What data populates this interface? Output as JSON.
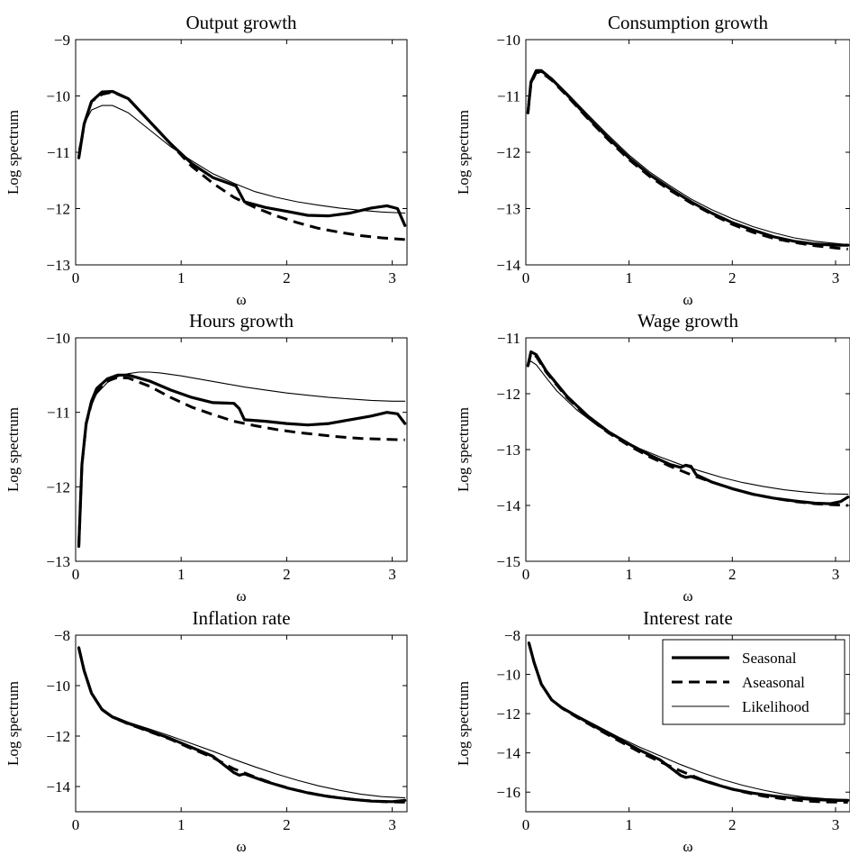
{
  "figure": {
    "legend": {
      "placement": "top-right of panel 6",
      "entries": [
        {
          "label": "Seasonal",
          "style": "thick-solid"
        },
        {
          "label": "Aseasonal",
          "style": "thick-dashed"
        },
        {
          "label": "Likelihood",
          "style": "thin-solid"
        }
      ]
    },
    "colors": {
      "line": "#000000",
      "background": "#ffffff"
    }
  },
  "chart_data": [
    {
      "type": "line",
      "title": "Output growth",
      "xlabel": "ω",
      "ylabel": "Log spectrum",
      "xlim": [
        0,
        3.14
      ],
      "ylim": [
        -13,
        -9
      ],
      "xticks": [
        "0",
        "1",
        "2",
        "3"
      ],
      "yticks": [
        "−13",
        "−12",
        "−11",
        "−10",
        "−9"
      ],
      "grid": false,
      "series": [
        {
          "name": "Seasonal",
          "x": [
            0.03,
            0.08,
            0.15,
            0.25,
            0.35,
            0.5,
            0.7,
            0.9,
            1.1,
            1.3,
            1.45,
            1.52,
            1.6,
            1.8,
            2.0,
            2.2,
            2.4,
            2.6,
            2.8,
            2.95,
            3.05,
            3.12
          ],
          "y": [
            -11.1,
            -10.5,
            -10.1,
            -9.93,
            -9.92,
            -10.05,
            -10.45,
            -10.85,
            -11.2,
            -11.45,
            -11.55,
            -11.6,
            -11.88,
            -11.98,
            -12.05,
            -12.12,
            -12.13,
            -12.08,
            -11.99,
            -11.95,
            -12.0,
            -12.3
          ]
        },
        {
          "name": "Aseasonal",
          "x": [
            0.03,
            0.08,
            0.15,
            0.25,
            0.35,
            0.5,
            0.7,
            0.9,
            1.1,
            1.3,
            1.5,
            1.7,
            1.9,
            2.1,
            2.3,
            2.5,
            2.7,
            2.9,
            3.12
          ],
          "y": [
            -11.1,
            -10.5,
            -10.1,
            -9.97,
            -9.93,
            -10.05,
            -10.45,
            -10.85,
            -11.25,
            -11.55,
            -11.8,
            -11.98,
            -12.13,
            -12.25,
            -12.35,
            -12.42,
            -12.48,
            -12.52,
            -12.55
          ]
        },
        {
          "name": "Likelihood",
          "x": [
            0.03,
            0.08,
            0.15,
            0.25,
            0.35,
            0.5,
            0.7,
            0.9,
            1.1,
            1.3,
            1.5,
            1.7,
            1.9,
            2.1,
            2.3,
            2.5,
            2.7,
            2.9,
            3.12
          ],
          "y": [
            -10.95,
            -10.5,
            -10.25,
            -10.17,
            -10.17,
            -10.3,
            -10.6,
            -10.9,
            -11.15,
            -11.38,
            -11.55,
            -11.7,
            -11.8,
            -11.88,
            -11.94,
            -11.99,
            -12.03,
            -12.06,
            -12.08
          ]
        }
      ]
    },
    {
      "type": "line",
      "title": "Consumption growth",
      "xlabel": "ω",
      "ylabel": "Log spectrum",
      "xlim": [
        0,
        3.14
      ],
      "ylim": [
        -14,
        -10
      ],
      "xticks": [
        "0",
        "1",
        "2",
        "3"
      ],
      "yticks": [
        "−14",
        "−13",
        "−12",
        "−11",
        "−10"
      ],
      "grid": false,
      "series": [
        {
          "name": "Seasonal",
          "x": [
            0.02,
            0.05,
            0.1,
            0.15,
            0.25,
            0.4,
            0.6,
            0.8,
            1.0,
            1.2,
            1.4,
            1.6,
            1.8,
            2.0,
            2.2,
            2.4,
            2.6,
            2.8,
            3.0,
            3.12
          ],
          "y": [
            -11.3,
            -10.75,
            -10.55,
            -10.55,
            -10.7,
            -10.98,
            -11.38,
            -11.75,
            -12.1,
            -12.4,
            -12.65,
            -12.88,
            -13.08,
            -13.25,
            -13.38,
            -13.5,
            -13.58,
            -13.63,
            -13.65,
            -13.65
          ]
        },
        {
          "name": "Aseasonal",
          "x": [
            0.02,
            0.05,
            0.1,
            0.15,
            0.25,
            0.4,
            0.6,
            0.8,
            1.0,
            1.2,
            1.4,
            1.6,
            1.8,
            2.0,
            2.2,
            2.4,
            2.6,
            2.8,
            3.0,
            3.12
          ],
          "y": [
            -11.3,
            -10.78,
            -10.58,
            -10.58,
            -10.72,
            -11.0,
            -11.4,
            -11.78,
            -12.13,
            -12.43,
            -12.68,
            -12.9,
            -13.1,
            -13.28,
            -13.42,
            -13.53,
            -13.6,
            -13.66,
            -13.7,
            -13.72
          ]
        },
        {
          "name": "Likelihood",
          "x": [
            0.02,
            0.05,
            0.1,
            0.15,
            0.25,
            0.4,
            0.6,
            0.8,
            1.0,
            1.2,
            1.4,
            1.6,
            1.8,
            2.0,
            2.2,
            2.4,
            2.6,
            2.8,
            3.0,
            3.12
          ],
          "y": [
            -11.1,
            -10.8,
            -10.6,
            -10.58,
            -10.68,
            -10.95,
            -11.33,
            -11.7,
            -12.05,
            -12.35,
            -12.6,
            -12.83,
            -13.02,
            -13.18,
            -13.32,
            -13.43,
            -13.52,
            -13.58,
            -13.62,
            -13.64
          ]
        }
      ]
    },
    {
      "type": "line",
      "title": "Hours growth",
      "xlabel": "ω",
      "ylabel": "Log spectrum",
      "xlim": [
        0,
        3.14
      ],
      "ylim": [
        -13,
        -10
      ],
      "xticks": [
        "0",
        "1",
        "2",
        "3"
      ],
      "yticks": [
        "−13",
        "−12",
        "−11",
        "−10"
      ],
      "grid": false,
      "series": [
        {
          "name": "Seasonal",
          "x": [
            0.03,
            0.06,
            0.1,
            0.15,
            0.2,
            0.3,
            0.4,
            0.5,
            0.7,
            0.9,
            1.1,
            1.3,
            1.5,
            1.55,
            1.6,
            1.8,
            2.0,
            2.2,
            2.4,
            2.6,
            2.8,
            2.95,
            3.05,
            3.12
          ],
          "y": [
            -12.8,
            -11.7,
            -11.15,
            -10.85,
            -10.68,
            -10.55,
            -10.5,
            -10.5,
            -10.58,
            -10.7,
            -10.8,
            -10.87,
            -10.88,
            -10.95,
            -11.1,
            -11.12,
            -11.15,
            -11.17,
            -11.15,
            -11.1,
            -11.05,
            -11.0,
            -11.02,
            -11.15
          ]
        },
        {
          "name": "Aseasonal",
          "x": [
            0.03,
            0.06,
            0.1,
            0.15,
            0.2,
            0.3,
            0.4,
            0.5,
            0.7,
            0.9,
            1.1,
            1.3,
            1.5,
            1.7,
            1.9,
            2.1,
            2.3,
            2.5,
            2.7,
            2.9,
            3.12
          ],
          "y": [
            -12.8,
            -11.7,
            -11.15,
            -10.88,
            -10.72,
            -10.58,
            -10.53,
            -10.54,
            -10.65,
            -10.8,
            -10.93,
            -11.03,
            -11.12,
            -11.18,
            -11.23,
            -11.27,
            -11.3,
            -11.33,
            -11.35,
            -11.36,
            -11.37
          ]
        },
        {
          "name": "Likelihood",
          "x": [
            0.03,
            0.06,
            0.1,
            0.15,
            0.2,
            0.3,
            0.4,
            0.5,
            0.6,
            0.7,
            0.8,
            1.0,
            1.2,
            1.4,
            1.6,
            1.8,
            2.0,
            2.2,
            2.4,
            2.6,
            2.8,
            3.0,
            3.12
          ],
          "y": [
            -12.7,
            -11.75,
            -11.2,
            -10.9,
            -10.75,
            -10.6,
            -10.52,
            -10.48,
            -10.46,
            -10.46,
            -10.47,
            -10.51,
            -10.56,
            -10.61,
            -10.66,
            -10.7,
            -10.74,
            -10.77,
            -10.8,
            -10.82,
            -10.84,
            -10.85,
            -10.85
          ]
        }
      ]
    },
    {
      "type": "line",
      "title": "Wage growth",
      "xlabel": "ω",
      "ylabel": "Log spectrum",
      "xlim": [
        0,
        3.14
      ],
      "ylim": [
        -15,
        -11
      ],
      "xticks": [
        "0",
        "1",
        "2",
        "3"
      ],
      "yticks": [
        "−15",
        "−14",
        "−13",
        "−12",
        "−11"
      ],
      "grid": false,
      "series": [
        {
          "name": "Seasonal",
          "x": [
            0.02,
            0.05,
            0.1,
            0.2,
            0.4,
            0.6,
            0.8,
            1.0,
            1.2,
            1.4,
            1.5,
            1.55,
            1.6,
            1.65,
            1.8,
            2.0,
            2.2,
            2.4,
            2.6,
            2.8,
            2.95,
            3.05,
            3.12
          ],
          "y": [
            -11.5,
            -11.25,
            -11.3,
            -11.6,
            -12.05,
            -12.4,
            -12.68,
            -12.9,
            -13.1,
            -13.27,
            -13.32,
            -13.28,
            -13.3,
            -13.45,
            -13.58,
            -13.7,
            -13.8,
            -13.87,
            -13.92,
            -13.96,
            -13.97,
            -13.93,
            -13.85
          ]
        },
        {
          "name": "Aseasonal",
          "x": [
            0.02,
            0.05,
            0.1,
            0.2,
            0.4,
            0.6,
            0.8,
            1.0,
            1.2,
            1.4,
            1.6,
            1.8,
            2.0,
            2.2,
            2.4,
            2.6,
            2.8,
            3.0,
            3.12
          ],
          "y": [
            -11.5,
            -11.28,
            -11.33,
            -11.62,
            -12.07,
            -12.42,
            -12.7,
            -12.93,
            -13.13,
            -13.3,
            -13.45,
            -13.58,
            -13.7,
            -13.8,
            -13.87,
            -13.93,
            -13.97,
            -13.99,
            -14.0
          ]
        },
        {
          "name": "Likelihood",
          "x": [
            0.02,
            0.05,
            0.1,
            0.2,
            0.3,
            0.5,
            0.7,
            0.9,
            1.1,
            1.3,
            1.5,
            1.7,
            1.9,
            2.1,
            2.3,
            2.5,
            2.7,
            2.9,
            3.12
          ],
          "y": [
            -11.45,
            -11.42,
            -11.48,
            -11.72,
            -11.95,
            -12.3,
            -12.58,
            -12.8,
            -12.98,
            -13.13,
            -13.27,
            -13.39,
            -13.5,
            -13.59,
            -13.66,
            -13.72,
            -13.76,
            -13.79,
            -13.8
          ]
        }
      ]
    },
    {
      "type": "line",
      "title": "Inflation rate",
      "xlabel": "ω",
      "ylabel": "Log spectrum",
      "xlim": [
        0,
        3.14
      ],
      "ylim": [
        -15,
        -8
      ],
      "xticks": [
        "0",
        "1",
        "2",
        "3"
      ],
      "yticks": [
        "−14",
        "−12",
        "−10",
        "−8"
      ],
      "grid": false,
      "series": [
        {
          "name": "Seasonal",
          "x": [
            0.03,
            0.08,
            0.15,
            0.25,
            0.35,
            0.5,
            0.7,
            0.9,
            1.1,
            1.3,
            1.5,
            1.55,
            1.6,
            1.8,
            2.0,
            2.2,
            2.4,
            2.6,
            2.8,
            3.0,
            3.12
          ],
          "y": [
            -8.5,
            -9.4,
            -10.3,
            -10.95,
            -11.25,
            -11.5,
            -11.8,
            -12.1,
            -12.45,
            -12.8,
            -13.45,
            -13.55,
            -13.5,
            -13.8,
            -14.05,
            -14.25,
            -14.4,
            -14.5,
            -14.58,
            -14.6,
            -14.55
          ]
        },
        {
          "name": "Aseasonal",
          "x": [
            0.03,
            0.08,
            0.15,
            0.25,
            0.35,
            0.5,
            0.7,
            0.9,
            1.1,
            1.3,
            1.5,
            1.7,
            1.9,
            2.1,
            2.3,
            2.5,
            2.7,
            2.9,
            3.12
          ],
          "y": [
            -8.5,
            -9.4,
            -10.3,
            -10.95,
            -11.25,
            -11.52,
            -11.82,
            -12.13,
            -12.5,
            -12.85,
            -13.3,
            -13.62,
            -13.92,
            -14.15,
            -14.33,
            -14.45,
            -14.54,
            -14.6,
            -14.62
          ]
        },
        {
          "name": "Likelihood",
          "x": [
            0.03,
            0.08,
            0.15,
            0.25,
            0.35,
            0.5,
            0.7,
            0.9,
            1.1,
            1.3,
            1.5,
            1.7,
            1.9,
            2.1,
            2.3,
            2.5,
            2.7,
            2.9,
            3.12
          ],
          "y": [
            -8.45,
            -9.35,
            -10.25,
            -10.9,
            -11.2,
            -11.45,
            -11.72,
            -12.0,
            -12.3,
            -12.6,
            -12.92,
            -13.22,
            -13.5,
            -13.75,
            -13.97,
            -14.15,
            -14.3,
            -14.4,
            -14.45
          ]
        }
      ]
    },
    {
      "type": "line",
      "title": "Interest rate",
      "xlabel": "ω",
      "ylabel": "Log spectrum",
      "xlim": [
        0,
        3.14
      ],
      "ylim": [
        -17,
        -8
      ],
      "xticks": [
        "0",
        "1",
        "2",
        "3"
      ],
      "yticks": [
        "−16",
        "−14",
        "−12",
        "−10",
        "−8"
      ],
      "grid": false,
      "series": [
        {
          "name": "Seasonal",
          "x": [
            0.03,
            0.08,
            0.15,
            0.25,
            0.35,
            0.5,
            0.7,
            0.9,
            1.1,
            1.3,
            1.5,
            1.55,
            1.6,
            1.8,
            2.0,
            2.2,
            2.4,
            2.6,
            2.8,
            3.0,
            3.12
          ],
          "y": [
            -8.4,
            -9.4,
            -10.5,
            -11.3,
            -11.7,
            -12.15,
            -12.75,
            -13.3,
            -13.85,
            -14.35,
            -15.15,
            -15.25,
            -15.2,
            -15.55,
            -15.85,
            -16.05,
            -16.2,
            -16.3,
            -16.38,
            -16.42,
            -16.42
          ]
        },
        {
          "name": "Aseasonal",
          "x": [
            0.03,
            0.08,
            0.15,
            0.25,
            0.35,
            0.5,
            0.7,
            0.9,
            1.1,
            1.3,
            1.5,
            1.7,
            1.9,
            2.1,
            2.3,
            2.5,
            2.7,
            2.9,
            3.12
          ],
          "y": [
            -8.4,
            -9.4,
            -10.5,
            -11.3,
            -11.72,
            -12.2,
            -12.8,
            -13.38,
            -13.95,
            -14.45,
            -14.92,
            -15.35,
            -15.7,
            -15.98,
            -16.2,
            -16.35,
            -16.45,
            -16.5,
            -16.52
          ]
        },
        {
          "name": "Likelihood",
          "x": [
            0.03,
            0.08,
            0.15,
            0.25,
            0.35,
            0.5,
            0.7,
            0.9,
            1.1,
            1.3,
            1.5,
            1.7,
            1.9,
            2.1,
            2.3,
            2.5,
            2.7,
            2.9,
            3.12
          ],
          "y": [
            -8.35,
            -9.35,
            -10.45,
            -11.25,
            -11.65,
            -12.1,
            -12.65,
            -13.2,
            -13.7,
            -14.15,
            -14.6,
            -15.0,
            -15.35,
            -15.65,
            -15.9,
            -16.1,
            -16.25,
            -16.33,
            -16.38
          ]
        }
      ]
    }
  ]
}
